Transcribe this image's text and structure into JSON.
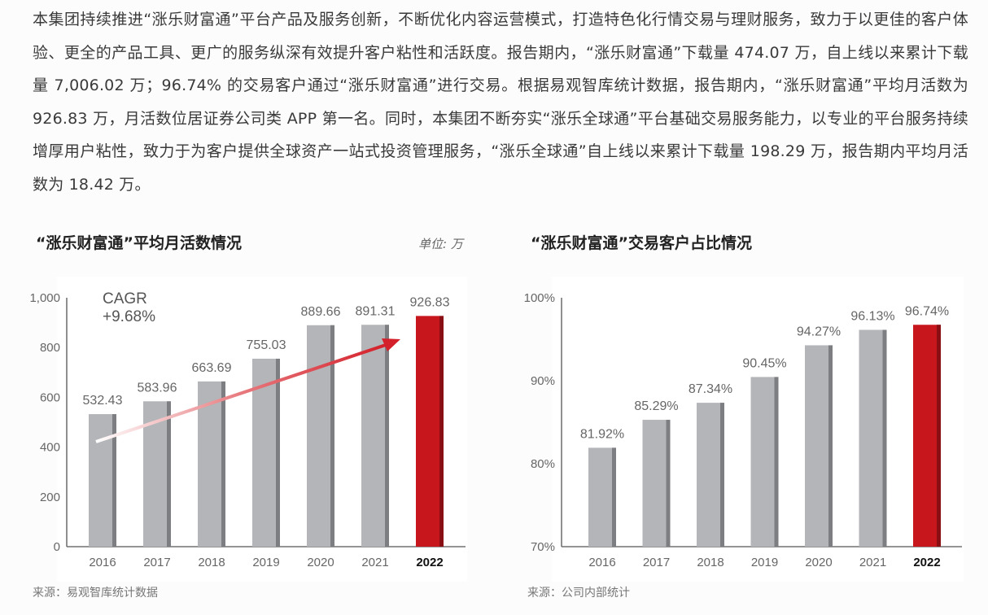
{
  "paragraph": "本集团持续推进“涨乐财富通”平台产品及服务创新，不断优化内容运营模式，打造特色化行情交易与理财服务，致力于以更佳的客户体验、更全的产品工具、更广的服务纵深有效提升客户粘性和活跃度。报告期内，“涨乐财富通”下载量 474.07 万，自上线以来累计下载量 7,006.02 万；96.74% 的交易客户通过“涨乐财富通”进行交易。根据易观智库统计数据，报告期内，“涨乐财富通”平均月活数为 926.83 万，月活数位居证券公司类 APP 第一名。同时，本集团不断夯实“涨乐全球通”平台基础交易服务能力，以专业的平台服务持续增厚用户粘性，致力于为客户提供全球资产一站式投资管理服务，“涨乐全球通”自上线以来累计下载量 198.29 万，报告期内平均月活数为 18.42 万。",
  "colors": {
    "bar": "#b4b5b9",
    "bar_edge": "#7d7e82",
    "highlight": "#c8161d",
    "highlight_edge": "#8a0f14",
    "arrow": "#d4202a"
  },
  "chart_data": [
    {
      "type": "bar",
      "title": "“涨乐财富通”平均月活数情况",
      "unit": "单位: 万",
      "categories": [
        "2016",
        "2017",
        "2018",
        "2019",
        "2020",
        "2021",
        "2022"
      ],
      "values": [
        532.43,
        583.96,
        663.69,
        755.03,
        889.66,
        891.31,
        926.83
      ],
      "labels": [
        "532.43",
        "583.96",
        "663.69",
        "755.03",
        "889.66",
        "891.31",
        "926.83"
      ],
      "highlight": "2022",
      "ylim": [
        0,
        1000
      ],
      "yticks": [
        0,
        200,
        400,
        600,
        800,
        1000
      ],
      "ytick_labels": [
        "0",
        "200",
        "400",
        "600",
        "800",
        "1,000"
      ],
      "annotation": {
        "line1": "CAGR",
        "line2": "+9.68%",
        "arrow": "trend-up"
      },
      "grid": false,
      "source": "来源：易观智库统计数据"
    },
    {
      "type": "bar",
      "title": "“涨乐财富通”交易客户占比情况",
      "categories": [
        "2016",
        "2017",
        "2018",
        "2019",
        "2020",
        "2021",
        "2022"
      ],
      "values": [
        81.92,
        85.29,
        87.34,
        90.45,
        94.27,
        96.13,
        96.74
      ],
      "labels": [
        "81.92%",
        "85.29%",
        "87.34%",
        "90.45%",
        "94.27%",
        "96.13%",
        "96.74%"
      ],
      "highlight": "2022",
      "ylim": [
        70,
        100
      ],
      "yticks": [
        70,
        80,
        90,
        100
      ],
      "ytick_labels": [
        "70%",
        "80%",
        "90%",
        "100%"
      ],
      "grid": false,
      "source": "来源：公司内部统计"
    }
  ]
}
